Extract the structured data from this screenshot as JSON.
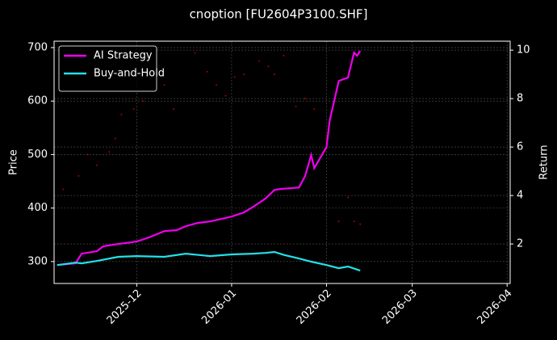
{
  "chart_data": {
    "type": "line",
    "title": "cnoption [FU2604P3100.SHF]",
    "y_label": "Price",
    "y2_label": "Return",
    "xlim": [
      "2025-11-04",
      "2026-04-02"
    ],
    "xticks": [
      {
        "value": "2025-12-01",
        "label": "2025-12"
      },
      {
        "value": "2026-01-01",
        "label": "2026-01"
      },
      {
        "value": "2026-02-01",
        "label": "2026-02"
      },
      {
        "value": "2026-03-01",
        "label": "2026-03"
      },
      {
        "value": "2026-04-01",
        "label": "2026-04"
      }
    ],
    "ylim": [
      259,
      712
    ],
    "yticks": [
      300,
      400,
      500,
      600,
      700
    ],
    "y2lim": [
      0.37,
      10.37
    ],
    "y2ticks": [
      2,
      4,
      6,
      8,
      10
    ],
    "grid": true,
    "legend": "upper left",
    "series": [
      {
        "name": "AI Strategy",
        "color": "#ee00ee",
        "axis": "y2",
        "x": [
          "2025-11-05",
          "2025-11-11",
          "2025-11-13",
          "2025-11-18",
          "2025-11-20",
          "2025-11-25",
          "2025-12-01",
          "2025-12-05",
          "2025-12-10",
          "2025-12-14",
          "2025-12-17",
          "2025-12-21",
          "2025-12-25",
          "2026-01-01",
          "2026-01-05",
          "2026-01-08",
          "2026-01-12",
          "2026-01-15",
          "2026-01-17",
          "2026-01-23",
          "2026-01-25",
          "2026-01-27",
          "2026-01-28",
          "2026-02-01",
          "2026-02-02",
          "2026-02-05",
          "2026-02-08",
          "2026-02-10",
          "2026-02-11",
          "2026-02-12"
        ],
        "values": [
          1.13,
          1.2,
          1.6,
          1.7,
          1.9,
          2.0,
          2.1,
          2.27,
          2.53,
          2.57,
          2.73,
          2.87,
          2.93,
          3.13,
          3.3,
          3.53,
          3.87,
          4.23,
          4.27,
          4.33,
          4.8,
          5.67,
          5.13,
          6.0,
          7.07,
          8.73,
          8.87,
          9.9,
          9.77,
          9.97
        ]
      },
      {
        "name": "Buy-and-Hold",
        "color": "#22e0e8",
        "axis": "y2",
        "x": [
          "2025-11-05",
          "2025-11-11",
          "2025-11-13",
          "2025-11-18",
          "2025-11-25",
          "2025-12-01",
          "2025-12-10",
          "2025-12-17",
          "2025-12-25",
          "2026-01-01",
          "2026-01-08",
          "2026-01-12",
          "2026-01-15",
          "2026-01-18",
          "2026-01-23",
          "2026-01-27",
          "2026-02-01",
          "2026-02-05",
          "2026-02-08",
          "2026-02-12"
        ],
        "values": [
          1.13,
          1.23,
          1.2,
          1.3,
          1.47,
          1.5,
          1.47,
          1.6,
          1.5,
          1.57,
          1.6,
          1.63,
          1.67,
          1.55,
          1.4,
          1.27,
          1.13,
          1.0,
          1.07,
          0.9
        ]
      },
      {
        "name": "Price",
        "color": "#cc0000",
        "axis": "y",
        "marker": "dot",
        "x": [
          "2025-11-07",
          "2025-11-12",
          "2025-11-15",
          "2025-11-18",
          "2025-11-22",
          "2025-11-24",
          "2025-11-26",
          "2025-11-30",
          "2025-12-03",
          "2025-12-05",
          "2025-12-10",
          "2025-12-13",
          "2025-12-20",
          "2025-12-24",
          "2025-12-27",
          "2025-12-30",
          "2026-01-02",
          "2026-01-05",
          "2026-01-10",
          "2026-01-13",
          "2026-01-15",
          "2026-01-18",
          "2026-01-22",
          "2026-01-25",
          "2026-01-28",
          "2026-02-01",
          "2026-02-05",
          "2026-02-08",
          "2026-02-10",
          "2026-02-12"
        ],
        "values": [
          435,
          460,
          500,
          480,
          505,
          530,
          575,
          585,
          600,
          620,
          630,
          585,
          690,
          655,
          630,
          610,
          645,
          650,
          675,
          665,
          650,
          685,
          590,
          605,
          585,
          530,
          375,
          420,
          375,
          370
        ]
      }
    ]
  }
}
